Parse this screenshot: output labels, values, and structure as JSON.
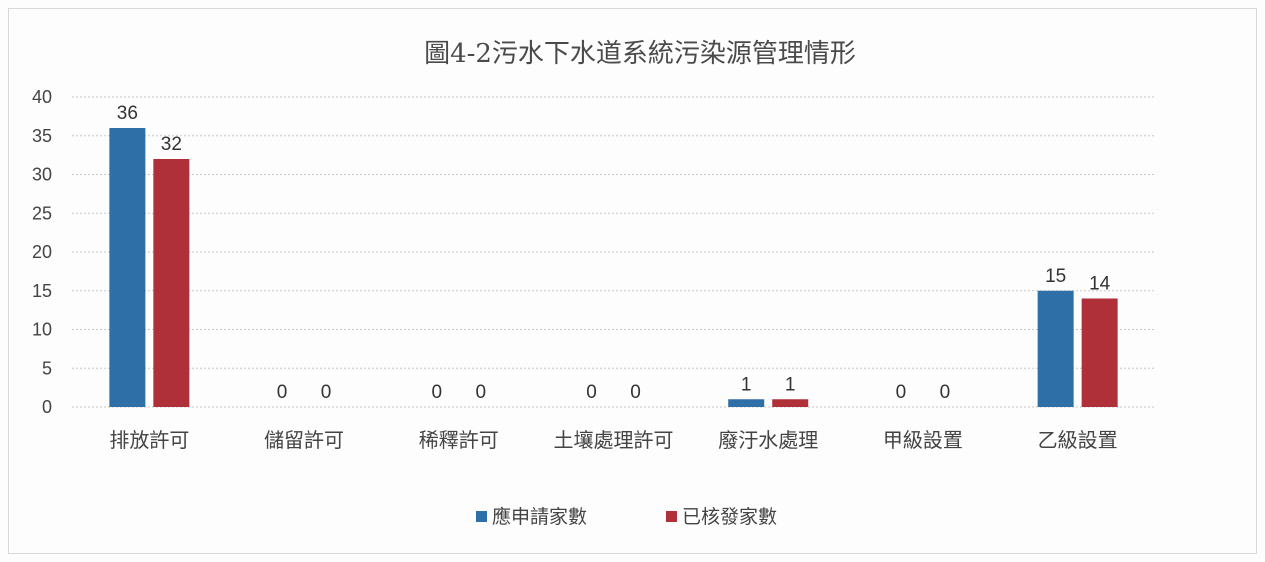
{
  "chart_data": {
    "type": "bar",
    "title": "圖4-2污水下水道系統污染源管理情形",
    "xlabel": "",
    "ylabel": "",
    "ylim": [
      0,
      40
    ],
    "yticks": [
      "0",
      "5",
      "10",
      "15",
      "20",
      "25",
      "30",
      "35",
      "40"
    ],
    "categories": [
      "排放許可",
      "儲留許可",
      "稀釋許可",
      "土壤處理許可",
      "廢汙水處理",
      "甲級設置",
      "乙級設置"
    ],
    "series": [
      {
        "name": "應申請家數",
        "color": "#2e6fa8",
        "values": [
          36,
          0,
          0,
          0,
          1,
          0,
          15
        ]
      },
      {
        "name": "已核發家數",
        "color": "#b0303a",
        "values": [
          32,
          0,
          0,
          0,
          1,
          0,
          14
        ]
      }
    ],
    "grid": true,
    "legend": "bottom"
  }
}
